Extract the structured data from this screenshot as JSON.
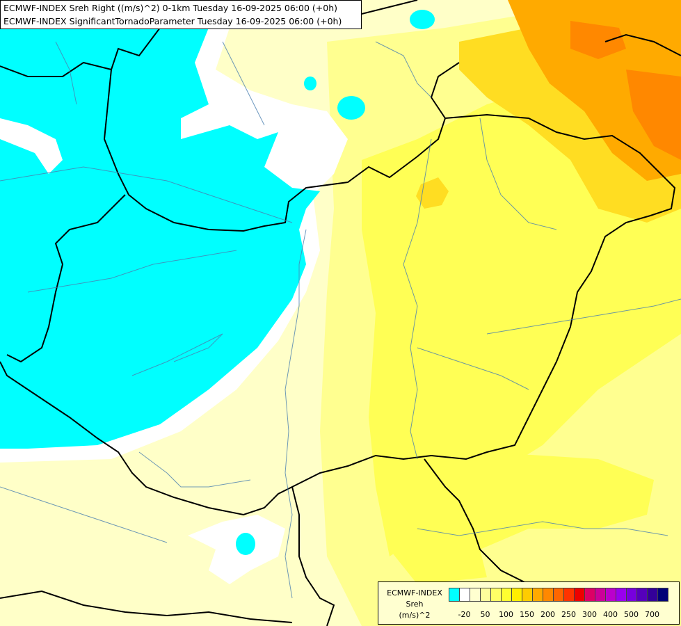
{
  "header": {
    "line1": "ECMWF-INDEX Sreh Right ((m/s)^2) 0-1km Tuesday 16-09-2025 06:00 (+0h)",
    "line2": "ECMWF-INDEX SignificantTornadoParameter Tuesday 16-09-2025 06:00 (+0h)"
  },
  "legend": {
    "title_line1": "ECMWF-INDEX",
    "title_line2": "Sreh",
    "title_line3": "(m/s)^2",
    "colors": [
      "#00ffff",
      "#ffffff",
      "#ffffd0",
      "#ffff9c",
      "#ffff66",
      "#ffff30",
      "#ffee00",
      "#ffcc00",
      "#ffaa00",
      "#ff8800",
      "#ff6600",
      "#ff3300",
      "#ee0000",
      "#dd0066",
      "#cc0099",
      "#bb00cc",
      "#9900ee",
      "#7700dd",
      "#5500bb",
      "#330099",
      "#000077"
    ],
    "ticks": [
      "-20",
      "50",
      "100",
      "150",
      "200",
      "250",
      "300",
      "400",
      "500",
      "700"
    ]
  },
  "map_colors": {
    "cyan": "#00ffff",
    "white": "#ffffff",
    "pale_yellow": "#ffffc0",
    "light_yellow": "#ffff80",
    "yellow": "#ffff40",
    "gold": "#ffd700",
    "orange": "#ffaa00",
    "dark_orange": "#ff8800"
  }
}
